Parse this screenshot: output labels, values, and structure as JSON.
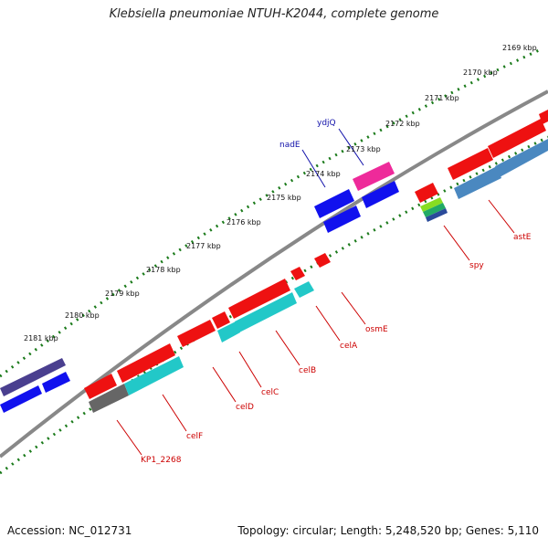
{
  "title": "Klebsiella pneumoniae NTUH-K2044, complete genome",
  "accession_text": "Accession: NC_012731",
  "summary_text": "Topology: circular; Length: 5,248,520 bp; Genes: 5,110",
  "colors": {
    "backbone": "#808080",
    "ticks": "#1a7a1a",
    "red": "#ee1111",
    "blue": "#1111ee",
    "cyan": "#22c8c8",
    "navy_purple": "#4a3f8f",
    "pink": "#ee2a9a",
    "steel": "#4a88c0",
    "gray": "#666666",
    "label_red": "#cc0000",
    "label_blue": "#1111aa"
  },
  "scale_labels": [
    "2169 kbp",
    "2170 kbp",
    "2171 kbp",
    "2172 kbp",
    "2173 kbp",
    "2174 kbp",
    "2175 kbp",
    "2176 kbp",
    "2177 kbp",
    "2178 kbp",
    "2179 kbp",
    "2180 kbp",
    "2181 kbp"
  ],
  "gene_labels": [
    {
      "name": "ydjQ",
      "group": "blue"
    },
    {
      "name": "nadE",
      "group": "blue"
    },
    {
      "name": "spy",
      "group": "red"
    },
    {
      "name": "astE",
      "group": "red"
    },
    {
      "name": "osmE",
      "group": "red"
    },
    {
      "name": "celA",
      "group": "red"
    },
    {
      "name": "celB",
      "group": "red"
    },
    {
      "name": "celC",
      "group": "red"
    },
    {
      "name": "celD",
      "group": "red"
    },
    {
      "name": "celF",
      "group": "red"
    },
    {
      "name": "KP1_2268",
      "group": "red"
    }
  ]
}
